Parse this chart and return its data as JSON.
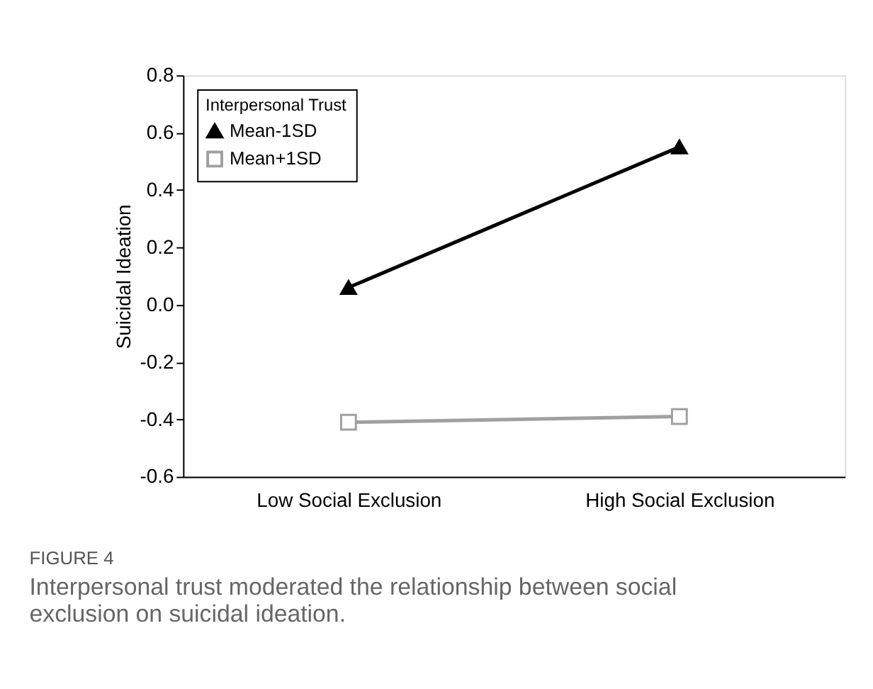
{
  "chart_data": {
    "type": "line",
    "ylabel": "Suicidal Ideation",
    "legend_title": "Interpersonal Trust",
    "categories": [
      "Low Social Exclusion",
      "High Social Exclusion"
    ],
    "series": [
      {
        "name": "Mean-1SD",
        "color": "#000000",
        "marker": "triangle",
        "values": [
          0.06,
          0.55
        ]
      },
      {
        "name": "Mean+1SD",
        "color": "#a0a0a0",
        "marker": "square",
        "values": [
          -0.41,
          -0.39
        ]
      }
    ],
    "ylim": [
      -0.6,
      0.8
    ],
    "yticks": [
      0.8,
      0.6,
      0.4,
      0.2,
      {
        "value": 0,
        "label": "0.0"
      },
      -0.2,
      -0.4,
      -0.6
    ],
    "grid": false,
    "legend": "top left",
    "annotations": [
      "FIGURE 4",
      "Interpersonal trust moderated the relationship between social exclusion on suicidal ideation."
    ]
  }
}
